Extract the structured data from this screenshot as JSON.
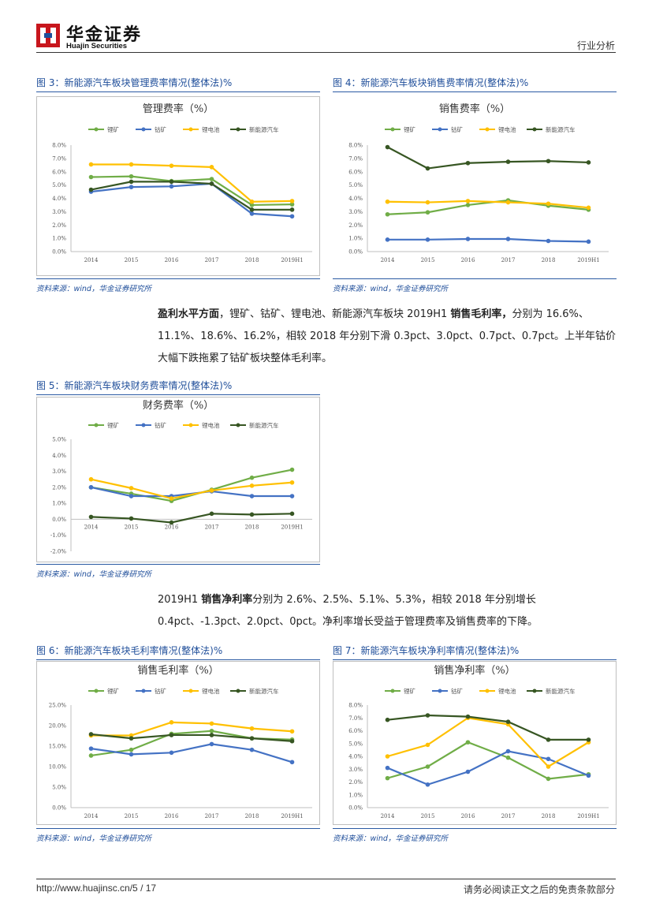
{
  "header": {
    "logo_cn": "华金证券",
    "logo_en": "Huajin Securities",
    "doc_type": "行业分析",
    "brand_color": "#c8161d"
  },
  "figures": {
    "fig3": {
      "title": "图 3：新能源汽车板块管理费率情况(整体法)%",
      "source": "资料来源：wind，华金证券研究所"
    },
    "fig4": {
      "title": "图 4：新能源汽车板块销售费率情况(整体法)%",
      "source": "资料来源：wind，华金证券研究所"
    },
    "fig5": {
      "title": "图 5：新能源汽车板块财务费率情况(整体法)%",
      "source": "资料来源：wind，华金证券研究所"
    },
    "fig6": {
      "title": "图 6：新能源汽车板块毛利率情况(整体法)%",
      "source": "资料来源：wind，华金证券研究所"
    },
    "fig7": {
      "title": "图 7：新能源汽车板块净利率情况(整体法)%",
      "source": "资料来源：wind，华金证券研究所"
    }
  },
  "paragraphs": {
    "p1_bold1": "盈利水平方面",
    "p1_text1": "，锂矿、钴矿、锂电池、新能源汽车板块 2019H1 ",
    "p1_bold2": "销售毛利率，",
    "p1_text2": "分别为 16.6%、11.1%、18.6%、16.2%，相较 2018 年分别下滑 0.3pct、3.0pct、0.7pct、0.7pct。上半年钴价大幅下跌拖累了钴矿板块整体毛利率。",
    "p2_text1": "2019H1 ",
    "p2_bold1": "销售净利率",
    "p2_text2": "分别为 2.6%、2.5%、5.1%、5.3%，相较 2018 年分别增长 0.4pct、-1.3pct、2.0pct、0pct。净利率增长受益于管理费率及销售费率的下降。"
  },
  "footer": {
    "url": "http://www.huajinsc.cn/5 / 17",
    "disclaimer": "请务必阅读正文之后的免责条款部分"
  },
  "chart_data": [
    {
      "id": "fig3",
      "type": "line",
      "title": "管理费率（%）",
      "categories": [
        "2014",
        "2015",
        "2016",
        "2017",
        "2018",
        "2019H1"
      ],
      "ylim": [
        0,
        8
      ],
      "ystep": 1,
      "ydecimals": 1,
      "series": [
        {
          "name": "锂矿",
          "color": "#70ad47",
          "values": [
            5.6,
            5.65,
            5.3,
            5.45,
            3.5,
            3.55
          ]
        },
        {
          "name": "钴矿",
          "color": "#4472c4",
          "values": [
            4.5,
            4.85,
            4.9,
            5.1,
            2.85,
            2.65
          ]
        },
        {
          "name": "锂电池",
          "color": "#ffc000",
          "values": [
            6.55,
            6.55,
            6.45,
            6.35,
            3.75,
            3.8
          ]
        },
        {
          "name": "新能源汽车",
          "color": "#375623",
          "values": [
            4.65,
            5.25,
            5.25,
            5.1,
            3.15,
            3.15
          ]
        }
      ]
    },
    {
      "id": "fig4",
      "type": "line",
      "title": "销售费率（%）",
      "categories": [
        "2014",
        "2015",
        "2016",
        "2017",
        "2018",
        "2019H1"
      ],
      "ylim": [
        0,
        8
      ],
      "ystep": 1,
      "ydecimals": 1,
      "series": [
        {
          "name": "锂矿",
          "color": "#70ad47",
          "values": [
            2.8,
            2.95,
            3.5,
            3.85,
            3.45,
            3.15
          ]
        },
        {
          "name": "钴矿",
          "color": "#4472c4",
          "values": [
            0.9,
            0.9,
            0.95,
            0.95,
            0.8,
            0.75
          ]
        },
        {
          "name": "锂电池",
          "color": "#ffc000",
          "values": [
            3.75,
            3.7,
            3.8,
            3.7,
            3.6,
            3.3
          ]
        },
        {
          "name": "新能源汽车",
          "color": "#375623",
          "values": [
            7.85,
            6.25,
            6.65,
            6.75,
            6.8,
            6.7
          ]
        }
      ]
    },
    {
      "id": "fig5",
      "type": "line",
      "title": "财务费率（%）",
      "categories": [
        "2014",
        "2015",
        "2016",
        "2017",
        "2018",
        "2019H1"
      ],
      "ylim": [
        -2,
        5
      ],
      "ystep": 1,
      "ydecimals": 1,
      "series": [
        {
          "name": "锂矿",
          "color": "#70ad47",
          "values": [
            2.0,
            1.6,
            1.15,
            1.85,
            2.6,
            3.1
          ]
        },
        {
          "name": "钴矿",
          "color": "#4472c4",
          "values": [
            2.0,
            1.45,
            1.45,
            1.75,
            1.45,
            1.45
          ]
        },
        {
          "name": "锂电池",
          "color": "#ffc000",
          "values": [
            2.5,
            1.95,
            1.3,
            1.8,
            2.1,
            2.3
          ]
        },
        {
          "name": "新能源汽车",
          "color": "#375623",
          "values": [
            0.15,
            0.05,
            -0.2,
            0.35,
            0.3,
            0.35
          ]
        }
      ]
    },
    {
      "id": "fig6",
      "type": "line",
      "title": "销售毛利率（%）",
      "categories": [
        "2014",
        "2015",
        "2016",
        "2017",
        "2018",
        "2019H1"
      ],
      "ylim": [
        0,
        25
      ],
      "ystep": 5,
      "ydecimals": 1,
      "series": [
        {
          "name": "锂矿",
          "color": "#70ad47",
          "values": [
            12.7,
            14.1,
            18.0,
            18.7,
            16.9,
            16.6
          ]
        },
        {
          "name": "钴矿",
          "color": "#4472c4",
          "values": [
            14.4,
            13.0,
            13.4,
            15.5,
            14.1,
            11.1
          ]
        },
        {
          "name": "锂电池",
          "color": "#ffc000",
          "values": [
            17.6,
            17.6,
            20.8,
            20.5,
            19.3,
            18.6
          ]
        },
        {
          "name": "新能源汽车",
          "color": "#375623",
          "values": [
            17.9,
            16.9,
            17.7,
            17.7,
            16.9,
            16.2
          ]
        }
      ]
    },
    {
      "id": "fig7",
      "type": "line",
      "title": "销售净利率（%）",
      "categories": [
        "2014",
        "2015",
        "2016",
        "2017",
        "2018",
        "2019H1"
      ],
      "ylim": [
        0,
        8
      ],
      "ystep": 1,
      "ydecimals": 1,
      "series": [
        {
          "name": "锂矿",
          "color": "#70ad47",
          "values": [
            2.3,
            3.2,
            5.1,
            3.9,
            2.25,
            2.6
          ]
        },
        {
          "name": "钴矿",
          "color": "#4472c4",
          "values": [
            3.1,
            1.8,
            2.8,
            4.4,
            3.8,
            2.5
          ]
        },
        {
          "name": "锂电池",
          "color": "#ffc000",
          "values": [
            4.0,
            4.9,
            7.0,
            6.5,
            3.2,
            5.1
          ]
        },
        {
          "name": "新能源汽车",
          "color": "#375623",
          "values": [
            6.85,
            7.2,
            7.1,
            6.7,
            5.3,
            5.3
          ]
        }
      ]
    }
  ]
}
